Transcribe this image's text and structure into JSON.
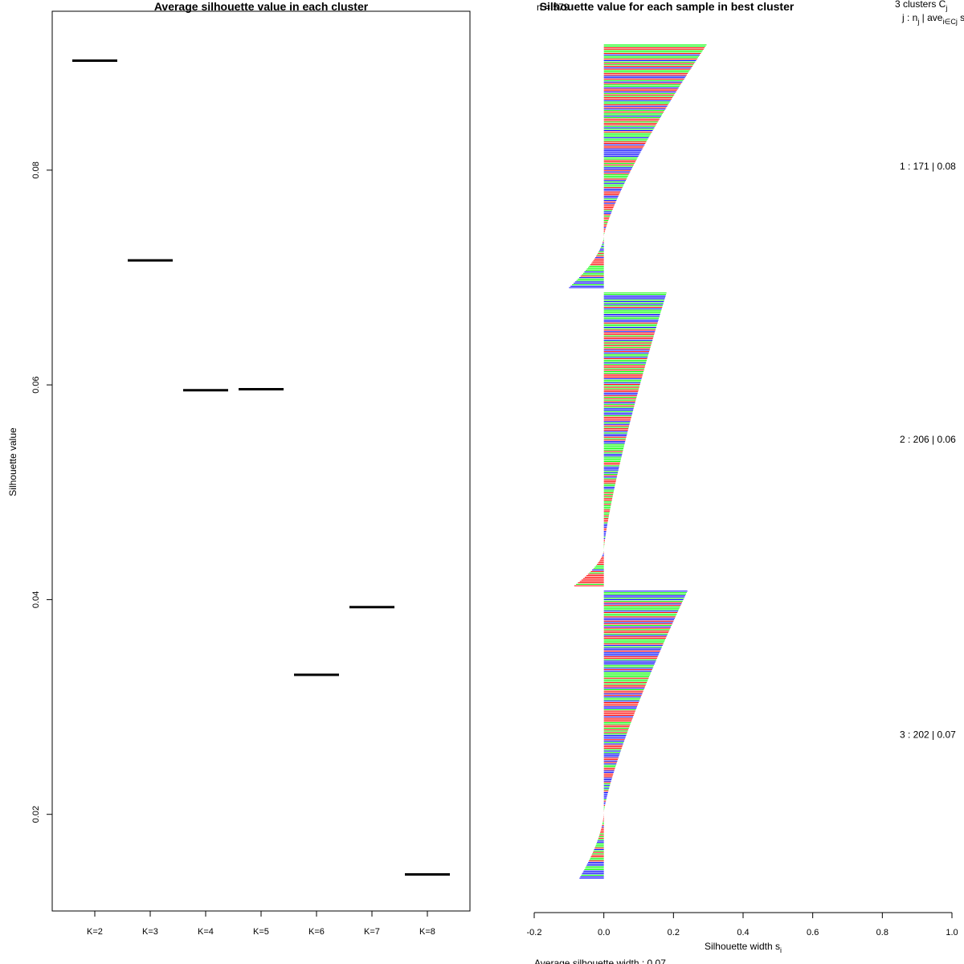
{
  "chart_data": [
    {
      "type": "scatter",
      "marker": "horizontal-segment",
      "title": "Average silhouette value in each cluster",
      "xlabel": "",
      "ylabel": "Silhouette value",
      "categories": [
        "K=2",
        "K=3",
        "K=4",
        "K=5",
        "K=6",
        "K=7",
        "K=8"
      ],
      "values": [
        0.0902,
        0.0716,
        0.0595,
        0.0596,
        0.033,
        0.0393,
        0.0144
      ],
      "ylim": [
        0.011,
        0.0948
      ],
      "yticks": [
        "0.02",
        "0.04",
        "0.06",
        "0.08"
      ],
      "ytick_values": [
        0.02,
        0.04,
        0.06,
        0.08
      ]
    },
    {
      "type": "bar",
      "orientation": "horizontal",
      "title": "Silhouette value for each sample in best cluster",
      "overlap_label": "n = 579",
      "xlabel": "Silhouette width s",
      "xlabel_sub": "i",
      "xlim": [
        -0.2,
        1.0
      ],
      "xticks": [
        "-0.2",
        "0.0",
        "0.2",
        "0.4",
        "0.6",
        "0.8",
        "1.0"
      ],
      "xtick_values": [
        -0.2,
        0,
        0.2,
        0.4,
        0.6,
        0.8,
        1.0
      ],
      "bar_colors": [
        "#ff0000",
        "#00ff00",
        "#0000ff"
      ],
      "legend_header_1": "3  clusters  C",
      "legend_header_1_sub": "j",
      "legend_header_2": "j :  n",
      "legend_header_2_sub": "j",
      "legend_header_2_rest": " | ave",
      "legend_header_2_sub2": "i∈Cj",
      "legend_header_2_tail": "  s",
      "clusters": [
        {
          "id": 1,
          "n": 171,
          "avg": 0.08,
          "label": "1 :  171  |  0.08",
          "max": 0.295,
          "min_negative": -0.1,
          "positive_fraction": 0.79
        },
        {
          "id": 2,
          "n": 206,
          "avg": 0.06,
          "label": "2 :  206  |  0.06",
          "max": 0.18,
          "min_negative": -0.085,
          "positive_fraction": 0.88
        },
        {
          "id": 3,
          "n": 202,
          "avg": 0.07,
          "label": "3 :  202  |  0.07",
          "max": 0.24,
          "min_negative": -0.07,
          "positive_fraction": 0.77
        }
      ],
      "footer": "Average silhouette width :  0.07"
    }
  ]
}
